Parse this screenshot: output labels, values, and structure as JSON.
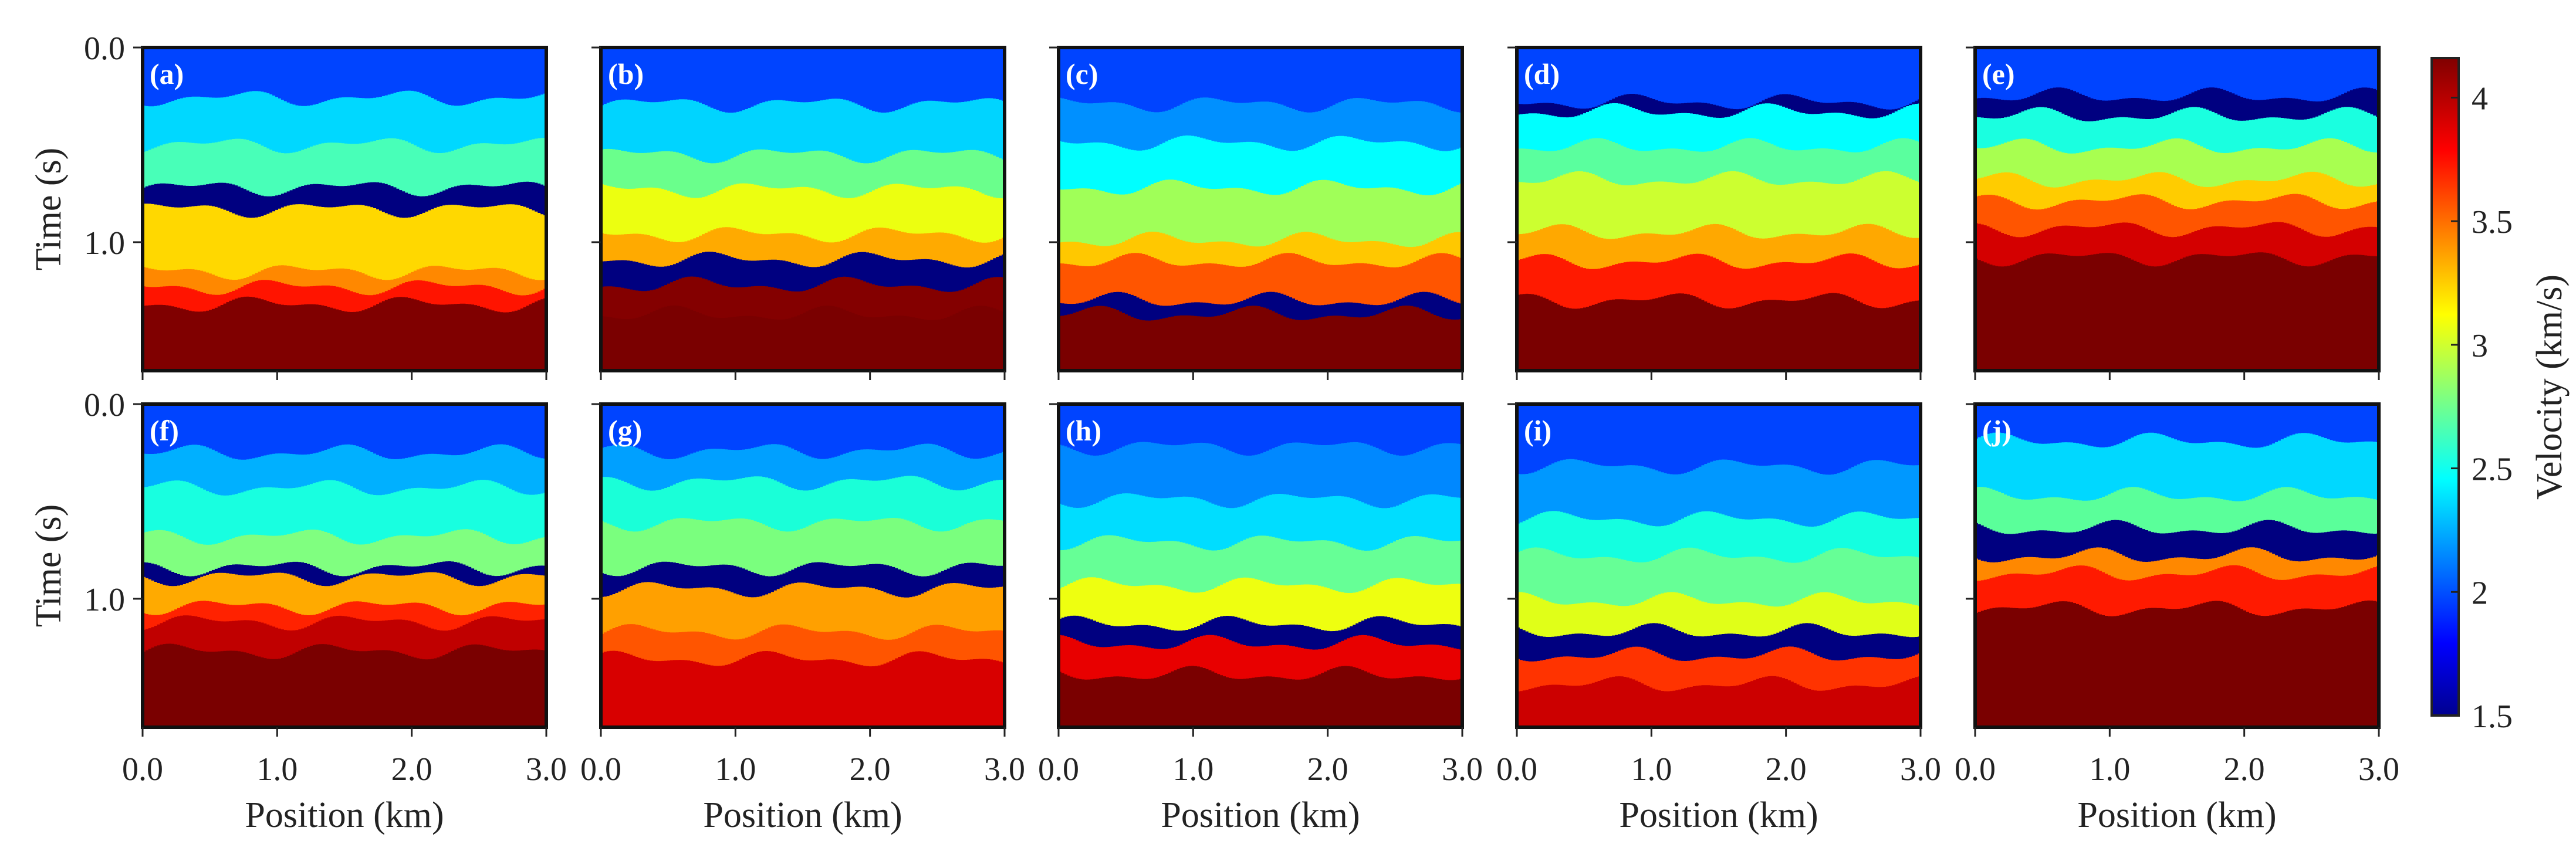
{
  "chart_data": {
    "type": "heatmap",
    "title": "",
    "xlabel": "Position (km)",
    "ylabel": "Time (s)",
    "xlim": [
      0,
      3.0
    ],
    "ylim": [
      0,
      1.66
    ],
    "xticks": [
      "0.0",
      "1.0",
      "2.0",
      "3.0"
    ],
    "xtick_values": [
      0,
      1,
      2,
      3
    ],
    "yticks": [
      "0.0",
      "1.0"
    ],
    "ytick_values": [
      0,
      1.0
    ],
    "colorbar": {
      "label": "Velocity (km/s)",
      "range": [
        1.5,
        4.16
      ],
      "ticks": [
        "1.5",
        "2",
        "2.5",
        "3",
        "3.5",
        "4"
      ],
      "tick_values": [
        1.5,
        2,
        2.5,
        3,
        3.5,
        4
      ],
      "colormap": "jet"
    },
    "panels": [
      {
        "label": "(a)",
        "layers": [
          {
            "top": 0,
            "color": "#0044ff"
          },
          {
            "top": 0.26,
            "color": "#00d8ff"
          },
          {
            "top": 0.5,
            "color": "#48ffb8"
          },
          {
            "top": 0.72,
            "color": "#000080"
          },
          {
            "top": 0.83,
            "color": "#ffd800"
          },
          {
            "top": 1.15,
            "color": "#ff8800"
          },
          {
            "top": 1.23,
            "color": "#ff1400"
          },
          {
            "top": 1.32,
            "color": "#800000"
          }
        ]
      },
      {
        "label": "(b)",
        "layers": [
          {
            "top": 0,
            "color": "#0044ff"
          },
          {
            "top": 0.29,
            "color": "#00d4ff"
          },
          {
            "top": 0.55,
            "color": "#6aff8c"
          },
          {
            "top": 0.73,
            "color": "#ecff10"
          },
          {
            "top": 0.96,
            "color": "#ffaa00"
          },
          {
            "top": 1.09,
            "color": "#000080"
          },
          {
            "top": 1.22,
            "color": "#840000"
          },
          {
            "top": 1.37,
            "color": "#7a0000"
          }
        ]
      },
      {
        "label": "(c)",
        "layers": [
          {
            "top": 0,
            "color": "#0044ff"
          },
          {
            "top": 0.29,
            "color": "#0090ff"
          },
          {
            "top": 0.49,
            "color": "#00ffff"
          },
          {
            "top": 0.72,
            "color": "#a0ff58"
          },
          {
            "top": 0.99,
            "color": "#ffc800"
          },
          {
            "top": 1.1,
            "color": "#ff5500"
          },
          {
            "top": 1.3,
            "color": "#000080"
          },
          {
            "top": 1.37,
            "color": "#7a0000"
          }
        ]
      },
      {
        "label": "(d)",
        "layers": [
          {
            "top": 0,
            "color": "#0044ff"
          },
          {
            "top": 0.28,
            "color": "#000080"
          },
          {
            "top": 0.33,
            "color": "#00ffff"
          },
          {
            "top": 0.51,
            "color": "#5aff9e"
          },
          {
            "top": 0.68,
            "color": "#ccff30"
          },
          {
            "top": 0.95,
            "color": "#ffa800"
          },
          {
            "top": 1.1,
            "color": "#ff1a00"
          },
          {
            "top": 1.3,
            "color": "#7a0000"
          }
        ]
      },
      {
        "label": "(e)",
        "layers": [
          {
            "top": 0,
            "color": "#0044ff"
          },
          {
            "top": 0.25,
            "color": "#000080"
          },
          {
            "top": 0.35,
            "color": "#1affe0"
          },
          {
            "top": 0.51,
            "color": "#a8ff50"
          },
          {
            "top": 0.68,
            "color": "#ffcc00"
          },
          {
            "top": 0.79,
            "color": "#ff5500"
          },
          {
            "top": 0.93,
            "color": "#d40000"
          },
          {
            "top": 1.08,
            "color": "#7a0000"
          }
        ]
      },
      {
        "label": "(f)",
        "layers": [
          {
            "top": 0,
            "color": "#0044ff"
          },
          {
            "top": 0.25,
            "color": "#00b0ff"
          },
          {
            "top": 0.43,
            "color": "#18ffe0"
          },
          {
            "top": 0.68,
            "color": "#80ff80"
          },
          {
            "top": 0.84,
            "color": "#000080"
          },
          {
            "top": 0.89,
            "color": "#ffaa00"
          },
          {
            "top": 1.04,
            "color": "#ff2200"
          },
          {
            "top": 1.12,
            "color": "#c00000"
          },
          {
            "top": 1.27,
            "color": "#7a0000"
          }
        ]
      },
      {
        "label": "(g)",
        "layers": [
          {
            "top": 0,
            "color": "#0044ff"
          },
          {
            "top": 0.24,
            "color": "#00a0ff"
          },
          {
            "top": 0.4,
            "color": "#1affd8"
          },
          {
            "top": 0.61,
            "color": "#7aff7e"
          },
          {
            "top": 0.84,
            "color": "#000080"
          },
          {
            "top": 0.95,
            "color": "#ffa000"
          },
          {
            "top": 1.17,
            "color": "#ff5500"
          },
          {
            "top": 1.31,
            "color": "#d80000"
          }
        ]
      },
      {
        "label": "(h)",
        "layers": [
          {
            "top": 0,
            "color": "#0044ff"
          },
          {
            "top": 0.22,
            "color": "#0088ff"
          },
          {
            "top": 0.49,
            "color": "#00ddff"
          },
          {
            "top": 0.71,
            "color": "#66ff96"
          },
          {
            "top": 0.93,
            "color": "#eeff10"
          },
          {
            "top": 1.13,
            "color": "#000080"
          },
          {
            "top": 1.23,
            "color": "#e80000"
          },
          {
            "top": 1.39,
            "color": "#7a0000"
          }
        ]
      },
      {
        "label": "(i)",
        "layers": [
          {
            "top": 0,
            "color": "#0044ff"
          },
          {
            "top": 0.32,
            "color": "#0098ff"
          },
          {
            "top": 0.59,
            "color": "#14ffe0"
          },
          {
            "top": 0.78,
            "color": "#66ff96"
          },
          {
            "top": 1.01,
            "color": "#e0ff18"
          },
          {
            "top": 1.17,
            "color": "#000080"
          },
          {
            "top": 1.29,
            "color": "#ff3300"
          },
          {
            "top": 1.44,
            "color": "#cc0000"
          }
        ]
      },
      {
        "label": "(j)",
        "layers": [
          {
            "top": 0,
            "color": "#0044ff"
          },
          {
            "top": 0.19,
            "color": "#00d8ff"
          },
          {
            "top": 0.47,
            "color": "#5aff9a"
          },
          {
            "top": 0.64,
            "color": "#000080"
          },
          {
            "top": 0.78,
            "color": "#ff8800"
          },
          {
            "top": 0.87,
            "color": "#ff1a00"
          },
          {
            "top": 1.05,
            "color": "#7a0000"
          }
        ]
      }
    ]
  }
}
